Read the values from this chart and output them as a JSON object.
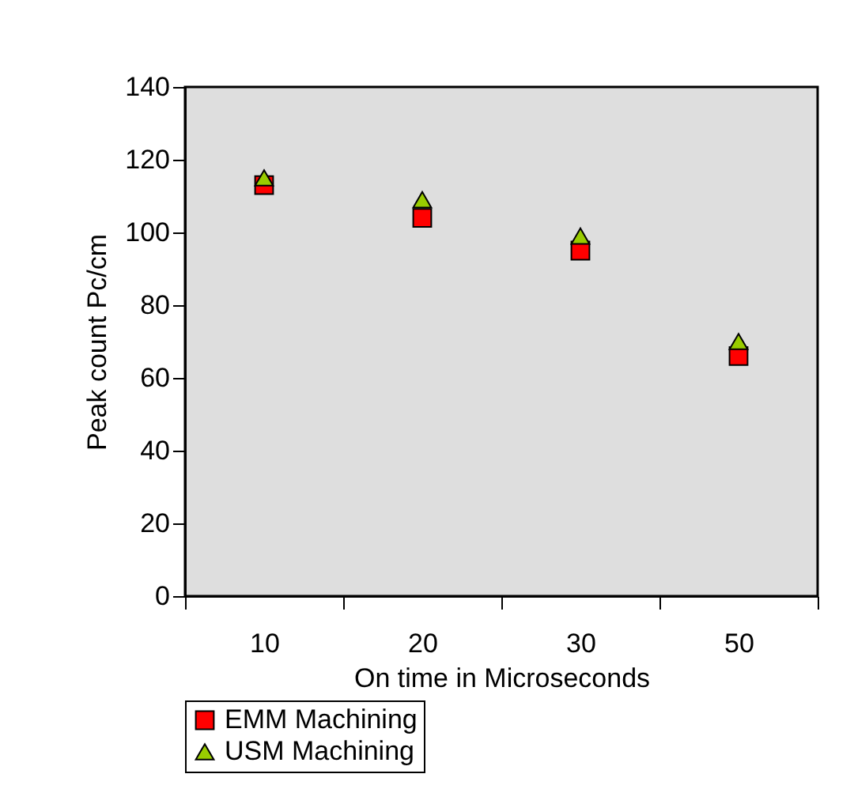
{
  "chart_data": {
    "type": "scatter",
    "xlabel": "On time in Microseconds",
    "ylabel": "Peak count Pc/cm",
    "categories": [
      "10",
      "20",
      "30",
      "50"
    ],
    "series": [
      {
        "name": "EMM Machining",
        "color": "#ff0000",
        "marker": "square",
        "values": [
          113,
          104,
          95,
          66
        ]
      },
      {
        "name": "USM Machining",
        "color": "#99cc00",
        "marker": "triangle",
        "values": [
          115,
          109,
          99,
          70
        ]
      }
    ],
    "ylim": [
      0,
      140
    ],
    "yticks": [
      0,
      20,
      40,
      60,
      80,
      100,
      120,
      140
    ],
    "grid": false,
    "legend": "bottom"
  }
}
